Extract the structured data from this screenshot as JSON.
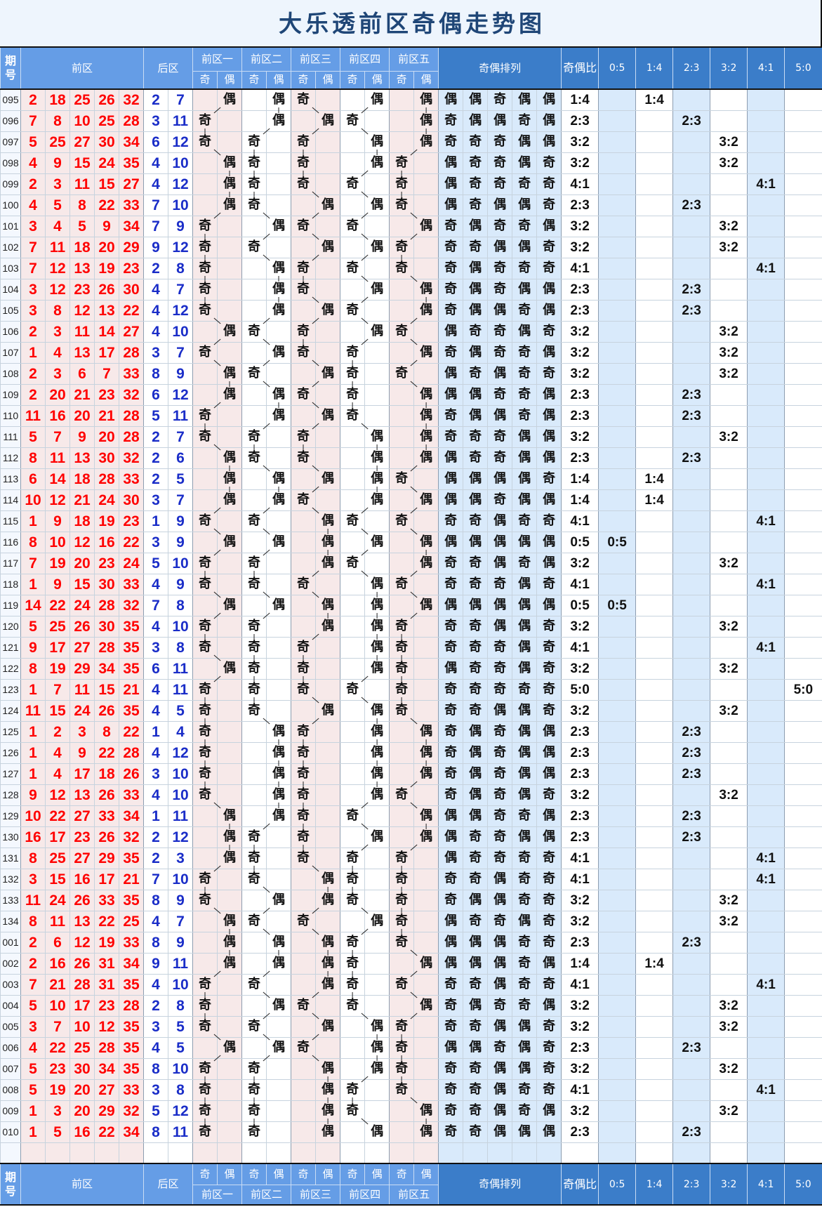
{
  "title": "大乐透前区奇偶走势图",
  "header": {
    "period": "期号",
    "front": "前区",
    "back": "后区",
    "zones": [
      "前区一",
      "前区二",
      "前区三",
      "前区四",
      "前区五"
    ],
    "odd": "奇",
    "even": "偶",
    "pattern": "奇偶排列",
    "ratio": "奇偶比",
    "ratio_columns": [
      "0:5",
      "1:4",
      "2:3",
      "3:2",
      "4:1",
      "5:0"
    ]
  },
  "colors": {
    "front_number": "#ff0000",
    "back_number": "#1a2dc8",
    "header_light": "#659de6",
    "header_dark": "#3b7dc9",
    "title_text": "#1f4677",
    "title_background": "#eef5fd",
    "zone_pink": "#f7e9e9",
    "pattern_blue": "#d9eafb"
  },
  "chart_data": {
    "type": "table",
    "title": "大乐透前区奇偶走势图",
    "columns": [
      "期号",
      "前区",
      "后区",
      "前区一",
      "前区二",
      "前区三",
      "前区四",
      "前区五",
      "奇偶排列",
      "奇偶比",
      "0:5",
      "1:4",
      "2:3",
      "3:2",
      "4:1",
      "5:0"
    ],
    "rows": [
      {
        "period": "095",
        "front": [
          2,
          18,
          25,
          26,
          32
        ],
        "back": [
          2,
          7
        ],
        "parity": [
          "偶",
          "偶",
          "奇",
          "偶",
          "偶"
        ],
        "ratio": "1:4"
      },
      {
        "period": "096",
        "front": [
          7,
          8,
          10,
          25,
          28
        ],
        "back": [
          3,
          11
        ],
        "parity": [
          "奇",
          "偶",
          "偶",
          "奇",
          "偶"
        ],
        "ratio": "2:3"
      },
      {
        "period": "097",
        "front": [
          5,
          25,
          27,
          30,
          34
        ],
        "back": [
          6,
          12
        ],
        "parity": [
          "奇",
          "奇",
          "奇",
          "偶",
          "偶"
        ],
        "ratio": "3:2"
      },
      {
        "period": "098",
        "front": [
          4,
          9,
          15,
          24,
          35
        ],
        "back": [
          4,
          10
        ],
        "parity": [
          "偶",
          "奇",
          "奇",
          "偶",
          "奇"
        ],
        "ratio": "3:2"
      },
      {
        "period": "099",
        "front": [
          2,
          3,
          11,
          15,
          27
        ],
        "back": [
          4,
          12
        ],
        "parity": [
          "偶",
          "奇",
          "奇",
          "奇",
          "奇"
        ],
        "ratio": "4:1"
      },
      {
        "period": "100",
        "front": [
          4,
          5,
          8,
          22,
          33
        ],
        "back": [
          7,
          10
        ],
        "parity": [
          "偶",
          "奇",
          "偶",
          "偶",
          "奇"
        ],
        "ratio": "2:3"
      },
      {
        "period": "101",
        "front": [
          3,
          4,
          5,
          9,
          34
        ],
        "back": [
          7,
          9
        ],
        "parity": [
          "奇",
          "偶",
          "奇",
          "奇",
          "偶"
        ],
        "ratio": "3:2"
      },
      {
        "period": "102",
        "front": [
          7,
          11,
          18,
          20,
          29
        ],
        "back": [
          9,
          12
        ],
        "parity": [
          "奇",
          "奇",
          "偶",
          "偶",
          "奇"
        ],
        "ratio": "3:2"
      },
      {
        "period": "103",
        "front": [
          7,
          12,
          13,
          19,
          23
        ],
        "back": [
          2,
          8
        ],
        "parity": [
          "奇",
          "偶",
          "奇",
          "奇",
          "奇"
        ],
        "ratio": "4:1"
      },
      {
        "period": "104",
        "front": [
          3,
          12,
          23,
          26,
          30
        ],
        "back": [
          4,
          7
        ],
        "parity": [
          "奇",
          "偶",
          "奇",
          "偶",
          "偶"
        ],
        "ratio": "2:3"
      },
      {
        "period": "105",
        "front": [
          3,
          8,
          12,
          13,
          22
        ],
        "back": [
          4,
          12
        ],
        "parity": [
          "奇",
          "偶",
          "偶",
          "奇",
          "偶"
        ],
        "ratio": "2:3"
      },
      {
        "period": "106",
        "front": [
          2,
          3,
          11,
          14,
          27
        ],
        "back": [
          4,
          10
        ],
        "parity": [
          "偶",
          "奇",
          "奇",
          "偶",
          "奇"
        ],
        "ratio": "3:2"
      },
      {
        "period": "107",
        "front": [
          1,
          4,
          13,
          17,
          28
        ],
        "back": [
          3,
          7
        ],
        "parity": [
          "奇",
          "偶",
          "奇",
          "奇",
          "偶"
        ],
        "ratio": "3:2"
      },
      {
        "period": "108",
        "front": [
          2,
          3,
          6,
          7,
          33
        ],
        "back": [
          8,
          9
        ],
        "parity": [
          "偶",
          "奇",
          "偶",
          "奇",
          "奇"
        ],
        "ratio": "3:2"
      },
      {
        "period": "109",
        "front": [
          2,
          20,
          21,
          23,
          32
        ],
        "back": [
          6,
          12
        ],
        "parity": [
          "偶",
          "偶",
          "奇",
          "奇",
          "偶"
        ],
        "ratio": "2:3"
      },
      {
        "period": "110",
        "front": [
          11,
          16,
          20,
          21,
          28
        ],
        "back": [
          5,
          11
        ],
        "parity": [
          "奇",
          "偶",
          "偶",
          "奇",
          "偶"
        ],
        "ratio": "2:3"
      },
      {
        "period": "111",
        "front": [
          5,
          7,
          9,
          20,
          28
        ],
        "back": [
          2,
          7
        ],
        "parity": [
          "奇",
          "奇",
          "奇",
          "偶",
          "偶"
        ],
        "ratio": "3:2"
      },
      {
        "period": "112",
        "front": [
          8,
          11,
          13,
          30,
          32
        ],
        "back": [
          2,
          6
        ],
        "parity": [
          "偶",
          "奇",
          "奇",
          "偶",
          "偶"
        ],
        "ratio": "2:3"
      },
      {
        "period": "113",
        "front": [
          6,
          14,
          18,
          28,
          33
        ],
        "back": [
          2,
          5
        ],
        "parity": [
          "偶",
          "偶",
          "偶",
          "偶",
          "奇"
        ],
        "ratio": "1:4"
      },
      {
        "period": "114",
        "front": [
          10,
          12,
          21,
          24,
          30
        ],
        "back": [
          3,
          7
        ],
        "parity": [
          "偶",
          "偶",
          "奇",
          "偶",
          "偶"
        ],
        "ratio": "1:4"
      },
      {
        "period": "115",
        "front": [
          1,
          9,
          18,
          19,
          23
        ],
        "back": [
          1,
          9
        ],
        "parity": [
          "奇",
          "奇",
          "偶",
          "奇",
          "奇"
        ],
        "ratio": "4:1"
      },
      {
        "period": "116",
        "front": [
          8,
          10,
          12,
          16,
          22
        ],
        "back": [
          3,
          9
        ],
        "parity": [
          "偶",
          "偶",
          "偶",
          "偶",
          "偶"
        ],
        "ratio": "0:5"
      },
      {
        "period": "117",
        "front": [
          7,
          19,
          20,
          23,
          24
        ],
        "back": [
          5,
          10
        ],
        "parity": [
          "奇",
          "奇",
          "偶",
          "奇",
          "偶"
        ],
        "ratio": "3:2"
      },
      {
        "period": "118",
        "front": [
          1,
          9,
          15,
          30,
          33
        ],
        "back": [
          4,
          9
        ],
        "parity": [
          "奇",
          "奇",
          "奇",
          "偶",
          "奇"
        ],
        "ratio": "4:1"
      },
      {
        "period": "119",
        "front": [
          14,
          22,
          24,
          28,
          32
        ],
        "back": [
          7,
          8
        ],
        "parity": [
          "偶",
          "偶",
          "偶",
          "偶",
          "偶"
        ],
        "ratio": "0:5"
      },
      {
        "period": "120",
        "front": [
          5,
          25,
          26,
          30,
          35
        ],
        "back": [
          4,
          10
        ],
        "parity": [
          "奇",
          "奇",
          "偶",
          "偶",
          "奇"
        ],
        "ratio": "3:2"
      },
      {
        "period": "121",
        "front": [
          9,
          17,
          27,
          28,
          35
        ],
        "back": [
          3,
          8
        ],
        "parity": [
          "奇",
          "奇",
          "奇",
          "偶",
          "奇"
        ],
        "ratio": "4:1"
      },
      {
        "period": "122",
        "front": [
          8,
          19,
          29,
          34,
          35
        ],
        "back": [
          6,
          11
        ],
        "parity": [
          "偶",
          "奇",
          "奇",
          "偶",
          "奇"
        ],
        "ratio": "3:2"
      },
      {
        "period": "123",
        "front": [
          1,
          7,
          11,
          15,
          21
        ],
        "back": [
          4,
          11
        ],
        "parity": [
          "奇",
          "奇",
          "奇",
          "奇",
          "奇"
        ],
        "ratio": "5:0"
      },
      {
        "period": "124",
        "front": [
          11,
          15,
          24,
          26,
          35
        ],
        "back": [
          4,
          5
        ],
        "parity": [
          "奇",
          "奇",
          "偶",
          "偶",
          "奇"
        ],
        "ratio": "3:2"
      },
      {
        "period": "125",
        "front": [
          1,
          2,
          3,
          8,
          22
        ],
        "back": [
          1,
          4
        ],
        "parity": [
          "奇",
          "偶",
          "奇",
          "偶",
          "偶"
        ],
        "ratio": "2:3"
      },
      {
        "period": "126",
        "front": [
          1,
          4,
          9,
          22,
          28
        ],
        "back": [
          4,
          12
        ],
        "parity": [
          "奇",
          "偶",
          "奇",
          "偶",
          "偶"
        ],
        "ratio": "2:3"
      },
      {
        "period": "127",
        "front": [
          1,
          4,
          17,
          18,
          26
        ],
        "back": [
          3,
          10
        ],
        "parity": [
          "奇",
          "偶",
          "奇",
          "偶",
          "偶"
        ],
        "ratio": "2:3"
      },
      {
        "period": "128",
        "front": [
          9,
          12,
          13,
          26,
          33
        ],
        "back": [
          4,
          10
        ],
        "parity": [
          "奇",
          "偶",
          "奇",
          "偶",
          "奇"
        ],
        "ratio": "3:2"
      },
      {
        "period": "129",
        "front": [
          10,
          22,
          27,
          33,
          34
        ],
        "back": [
          1,
          11
        ],
        "parity": [
          "偶",
          "偶",
          "奇",
          "奇",
          "偶"
        ],
        "ratio": "2:3"
      },
      {
        "period": "130",
        "front": [
          16,
          17,
          23,
          26,
          32
        ],
        "back": [
          2,
          12
        ],
        "parity": [
          "偶",
          "奇",
          "奇",
          "偶",
          "偶"
        ],
        "ratio": "2:3"
      },
      {
        "period": "131",
        "front": [
          8,
          25,
          27,
          29,
          35
        ],
        "back": [
          2,
          3
        ],
        "parity": [
          "偶",
          "奇",
          "奇",
          "奇",
          "奇"
        ],
        "ratio": "4:1"
      },
      {
        "period": "132",
        "front": [
          3,
          15,
          16,
          17,
          21
        ],
        "back": [
          7,
          10
        ],
        "parity": [
          "奇",
          "奇",
          "偶",
          "奇",
          "奇"
        ],
        "ratio": "4:1"
      },
      {
        "period": "133",
        "front": [
          11,
          24,
          26,
          33,
          35
        ],
        "back": [
          8,
          9
        ],
        "parity": [
          "奇",
          "偶",
          "偶",
          "奇",
          "奇"
        ],
        "ratio": "3:2"
      },
      {
        "period": "134",
        "front": [
          8,
          11,
          13,
          22,
          25
        ],
        "back": [
          4,
          7
        ],
        "parity": [
          "偶",
          "奇",
          "奇",
          "偶",
          "奇"
        ],
        "ratio": "3:2"
      },
      {
        "period": "001",
        "front": [
          2,
          6,
          12,
          19,
          33
        ],
        "back": [
          8,
          9
        ],
        "parity": [
          "偶",
          "偶",
          "偶",
          "奇",
          "奇"
        ],
        "ratio": "2:3"
      },
      {
        "period": "002",
        "front": [
          2,
          16,
          26,
          31,
          34
        ],
        "back": [
          9,
          11
        ],
        "parity": [
          "偶",
          "偶",
          "偶",
          "奇",
          "偶"
        ],
        "ratio": "1:4"
      },
      {
        "period": "003",
        "front": [
          7,
          21,
          28,
          31,
          35
        ],
        "back": [
          4,
          10
        ],
        "parity": [
          "奇",
          "奇",
          "偶",
          "奇",
          "奇"
        ],
        "ratio": "4:1"
      },
      {
        "period": "004",
        "front": [
          5,
          10,
          17,
          23,
          28
        ],
        "back": [
          2,
          8
        ],
        "parity": [
          "奇",
          "偶",
          "奇",
          "奇",
          "偶"
        ],
        "ratio": "3:2"
      },
      {
        "period": "005",
        "front": [
          3,
          7,
          10,
          12,
          35
        ],
        "back": [
          3,
          5
        ],
        "parity": [
          "奇",
          "奇",
          "偶",
          "偶",
          "奇"
        ],
        "ratio": "3:2"
      },
      {
        "period": "006",
        "front": [
          4,
          22,
          25,
          28,
          35
        ],
        "back": [
          4,
          5
        ],
        "parity": [
          "偶",
          "偶",
          "奇",
          "偶",
          "奇"
        ],
        "ratio": "2:3"
      },
      {
        "period": "007",
        "front": [
          5,
          23,
          30,
          34,
          35
        ],
        "back": [
          8,
          10
        ],
        "parity": [
          "奇",
          "奇",
          "偶",
          "偶",
          "奇"
        ],
        "ratio": "3:2"
      },
      {
        "period": "008",
        "front": [
          5,
          19,
          20,
          27,
          33
        ],
        "back": [
          3,
          8
        ],
        "parity": [
          "奇",
          "奇",
          "偶",
          "奇",
          "奇"
        ],
        "ratio": "4:1"
      },
      {
        "period": "009",
        "front": [
          1,
          3,
          20,
          29,
          32
        ],
        "back": [
          5,
          12
        ],
        "parity": [
          "奇",
          "奇",
          "偶",
          "奇",
          "偶"
        ],
        "ratio": "3:2"
      },
      {
        "period": "010",
        "front": [
          1,
          5,
          16,
          22,
          34
        ],
        "back": [
          8,
          11
        ],
        "parity": [
          "奇",
          "奇",
          "偶",
          "偶",
          "偶"
        ],
        "ratio": "2:3"
      }
    ]
  }
}
